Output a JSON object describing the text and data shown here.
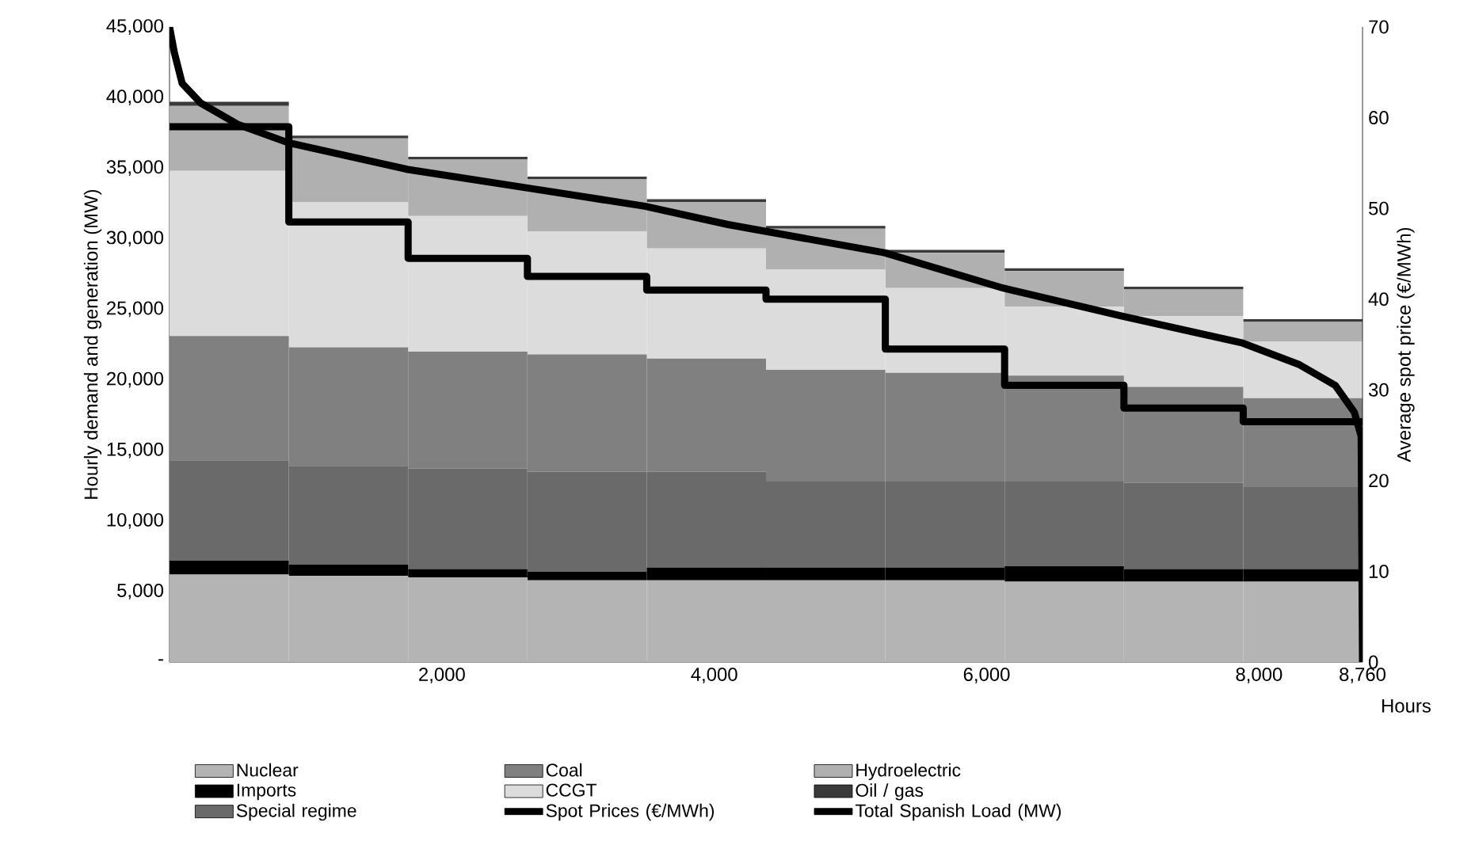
{
  "chart_data": {
    "type": "bar",
    "stacked": true,
    "xlabel": "Hours",
    "ylabel": "Hourly demand and generation (MW)",
    "y2label": "Average spot price (€/MWh)",
    "x": [
      438,
      1314,
      2190,
      3066,
      3942,
      4818,
      5694,
      6570,
      7446,
      8322
    ],
    "xlim": [
      0,
      8760
    ],
    "xticks": [
      {
        "value": 2000,
        "label": "2,000"
      },
      {
        "value": 4000,
        "label": "4,000"
      },
      {
        "value": 6000,
        "label": "6,000"
      },
      {
        "value": 8000,
        "label": "8,000"
      },
      {
        "value": 8760,
        "label": "8,760"
      }
    ],
    "ylim": [
      0,
      45000
    ],
    "yticks": [
      {
        "value": 0,
        "label": "-"
      },
      {
        "value": 5000,
        "label": "5,000"
      },
      {
        "value": 10000,
        "label": "10,000"
      },
      {
        "value": 15000,
        "label": "15,000"
      },
      {
        "value": 20000,
        "label": "20,000"
      },
      {
        "value": 25000,
        "label": "25,000"
      },
      {
        "value": 30000,
        "label": "30,000"
      },
      {
        "value": 35000,
        "label": "35,000"
      },
      {
        "value": 40000,
        "label": "40,000"
      },
      {
        "value": 45000,
        "label": "45,000"
      }
    ],
    "y2lim": [
      0,
      70
    ],
    "y2ticks": [
      0,
      10,
      20,
      30,
      40,
      50,
      60,
      70
    ],
    "legend": "bottom",
    "series": [
      {
        "name": "Nuclear",
        "color": "#b4b4b4",
        "values": [
          6200,
          6100,
          6000,
          5800,
          5800,
          5800,
          5800,
          5700,
          5700,
          5700
        ]
      },
      {
        "name": "Imports",
        "color": "#000000",
        "values": [
          1000,
          800,
          600,
          600,
          900,
          900,
          900,
          1100,
          900,
          900
        ]
      },
      {
        "name": "Special regime",
        "color": "#6a6a6a",
        "values": [
          7100,
          7000,
          7100,
          7100,
          6800,
          6100,
          6100,
          6000,
          6100,
          5800
        ]
      },
      {
        "name": "Coal",
        "color": "#808080",
        "values": [
          8800,
          8400,
          8300,
          8300,
          8000,
          7900,
          7700,
          7500,
          6800,
          6300
        ]
      },
      {
        "name": "CCGT",
        "color": "#dcdcdc",
        "values": [
          11700,
          10300,
          9600,
          8700,
          7800,
          7100,
          6000,
          4900,
          5000,
          4000
        ]
      },
      {
        "name": "Spot Prices (€/MWh)",
        "type": "step",
        "axis": "y2",
        "color": "#000000",
        "x": [
          0,
          876,
          1752,
          2628,
          3504,
          4380,
          5256,
          6132,
          7008,
          7884,
          8760
        ],
        "values": [
          59,
          48.5,
          44.5,
          42.5,
          41,
          40,
          34.5,
          30.5,
          28,
          26.5,
          26.5
        ]
      },
      {
        "name": "Hydroelectric",
        "color": "#b0b0b0",
        "values": [
          4600,
          4500,
          4000,
          3700,
          3300,
          2900,
          2500,
          2500,
          1900,
          1400
        ]
      },
      {
        "name": "Oil / gas",
        "color": "#3a3a3a",
        "values": [
          300,
          200,
          200,
          200,
          200,
          200,
          200,
          200,
          200,
          200
        ]
      },
      {
        "name": "Total Spanish Load (MW)",
        "type": "line",
        "color": "#000000",
        "x": [
          0,
          35,
          93,
          230,
          500,
          870,
          1750,
          2620,
          3490,
          4100,
          5250,
          6120,
          7000,
          7880,
          8290,
          8560,
          8700,
          8750,
          8760
        ],
        "values": [
          45000,
          43200,
          41000,
          39600,
          38100,
          36800,
          34900,
          33600,
          32300,
          31000,
          29000,
          26500,
          24500,
          22600,
          21100,
          19600,
          17700,
          16000,
          0
        ]
      }
    ]
  }
}
